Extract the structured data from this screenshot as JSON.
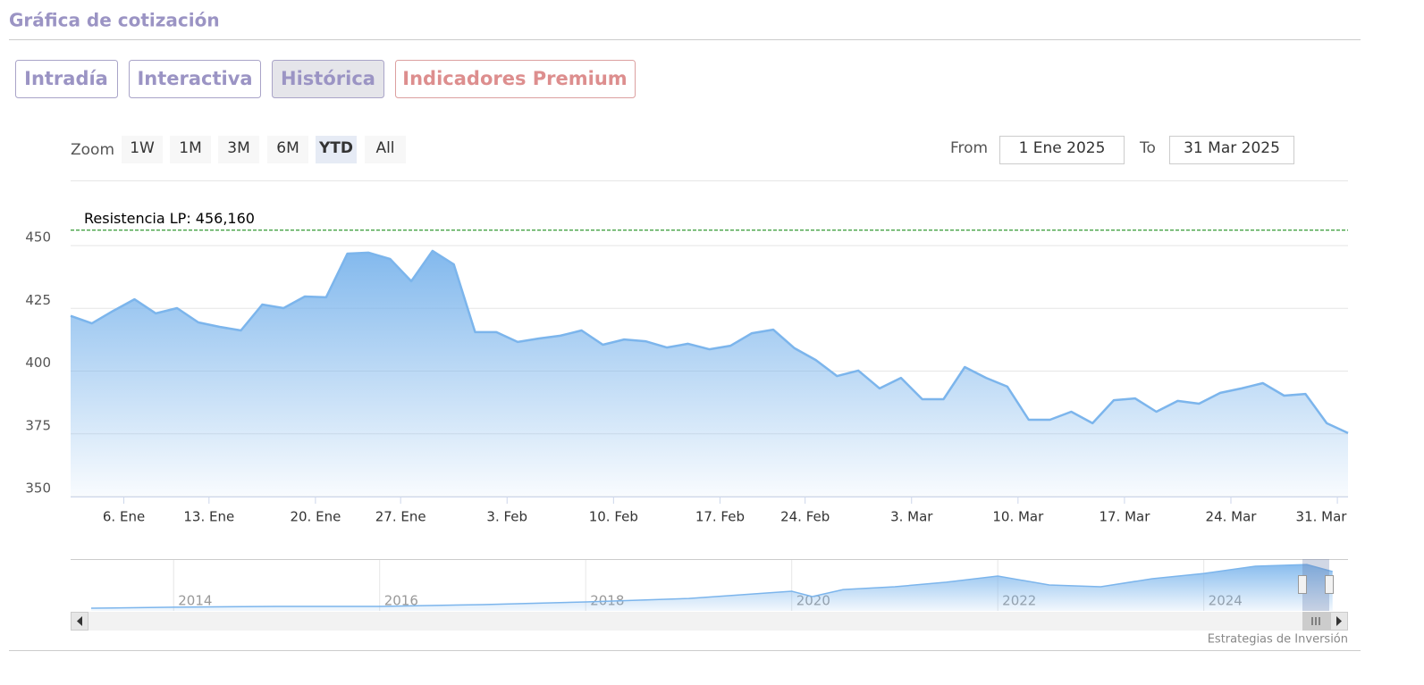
{
  "header": {
    "title": "Gráfica de cotización"
  },
  "tabs": [
    "Intradía",
    "Interactiva",
    "Histórica",
    "Indicadores Premium"
  ],
  "zoom": {
    "label": "Zoom",
    "buttons": [
      "1W",
      "1M",
      "3M",
      "6M",
      "YTD",
      "All"
    ]
  },
  "range": {
    "from_label": "From",
    "from": "1 Ene 2025",
    "to_label": "To",
    "to": "31 Mar 2025"
  },
  "credit": "Estrategias de Inversión",
  "chart_data": [
    {
      "type": "area",
      "color": "#7cb5ec",
      "values": [
        422,
        419,
        424,
        428.6,
        423,
        425.1,
        419.4,
        417.6,
        416.2,
        426.5,
        425.1,
        429.7,
        429.4,
        446.8,
        447.2,
        444.7,
        435.8,
        447.9,
        442.5,
        415.5,
        415.5,
        411.6,
        413,
        414.1,
        416.2,
        410.5,
        412.6,
        411.9,
        409.4,
        410.9,
        408.7,
        410.1,
        415.1,
        416.5,
        409.1,
        404.4,
        398,
        400.2,
        393.1,
        397.3,
        388.8,
        388.8,
        401.6,
        397.3,
        393.8,
        380.6,
        380.6,
        383.8,
        379.2,
        388.4,
        389.1,
        383.8,
        388.1,
        387,
        391.3,
        393.1,
        395.2,
        390.2,
        390.9,
        379.2,
        375.3
      ],
      "xlim": [
        0,
        60
      ],
      "xticks": [
        {
          "value": 2.5,
          "label": "6. Ene"
        },
        {
          "value": 6.5,
          "label": "13. Ene"
        },
        {
          "value": 11.5,
          "label": "20. Ene"
        },
        {
          "value": 15.5,
          "label": "27. Ene"
        },
        {
          "value": 20.5,
          "label": "3. Feb"
        },
        {
          "value": 25.5,
          "label": "10. Feb"
        },
        {
          "value": 30.5,
          "label": "17. Feb"
        },
        {
          "value": 34.5,
          "label": "24. Feb"
        },
        {
          "value": 39.5,
          "label": "3. Mar"
        },
        {
          "value": 44.5,
          "label": "10. Mar"
        },
        {
          "value": 49.5,
          "label": "17. Mar"
        },
        {
          "value": 54.5,
          "label": "24. Mar"
        },
        {
          "value": 59.5,
          "label": "31. Mar"
        }
      ],
      "ylim": [
        350,
        475
      ],
      "yticks": [
        350,
        375,
        400,
        425,
        450
      ],
      "grid": true,
      "annotation": {
        "text": "Resistencia LP: 456,160",
        "value": 456.16,
        "color": "#008000"
      }
    },
    {
      "type": "navigator",
      "color": "#7cb5ec",
      "x": [
        2013.2,
        2014,
        2015,
        2016,
        2017,
        2018,
        2019,
        2020,
        2020.2,
        2020.5,
        2021,
        2021.5,
        2022,
        2022.5,
        2023,
        2023.5,
        2024,
        2024.5,
        2025,
        2025.25
      ],
      "values": [
        25,
        34,
        42,
        42,
        59,
        84,
        117,
        185,
        134,
        201,
        227,
        269,
        327,
        243,
        227,
        302,
        352,
        420,
        436,
        369
      ],
      "xlim": [
        2013,
        2025.4
      ],
      "ylim": [
        0,
        470
      ],
      "xticks": [
        2014,
        2016,
        2018,
        2020,
        2022,
        2024
      ]
    }
  ]
}
